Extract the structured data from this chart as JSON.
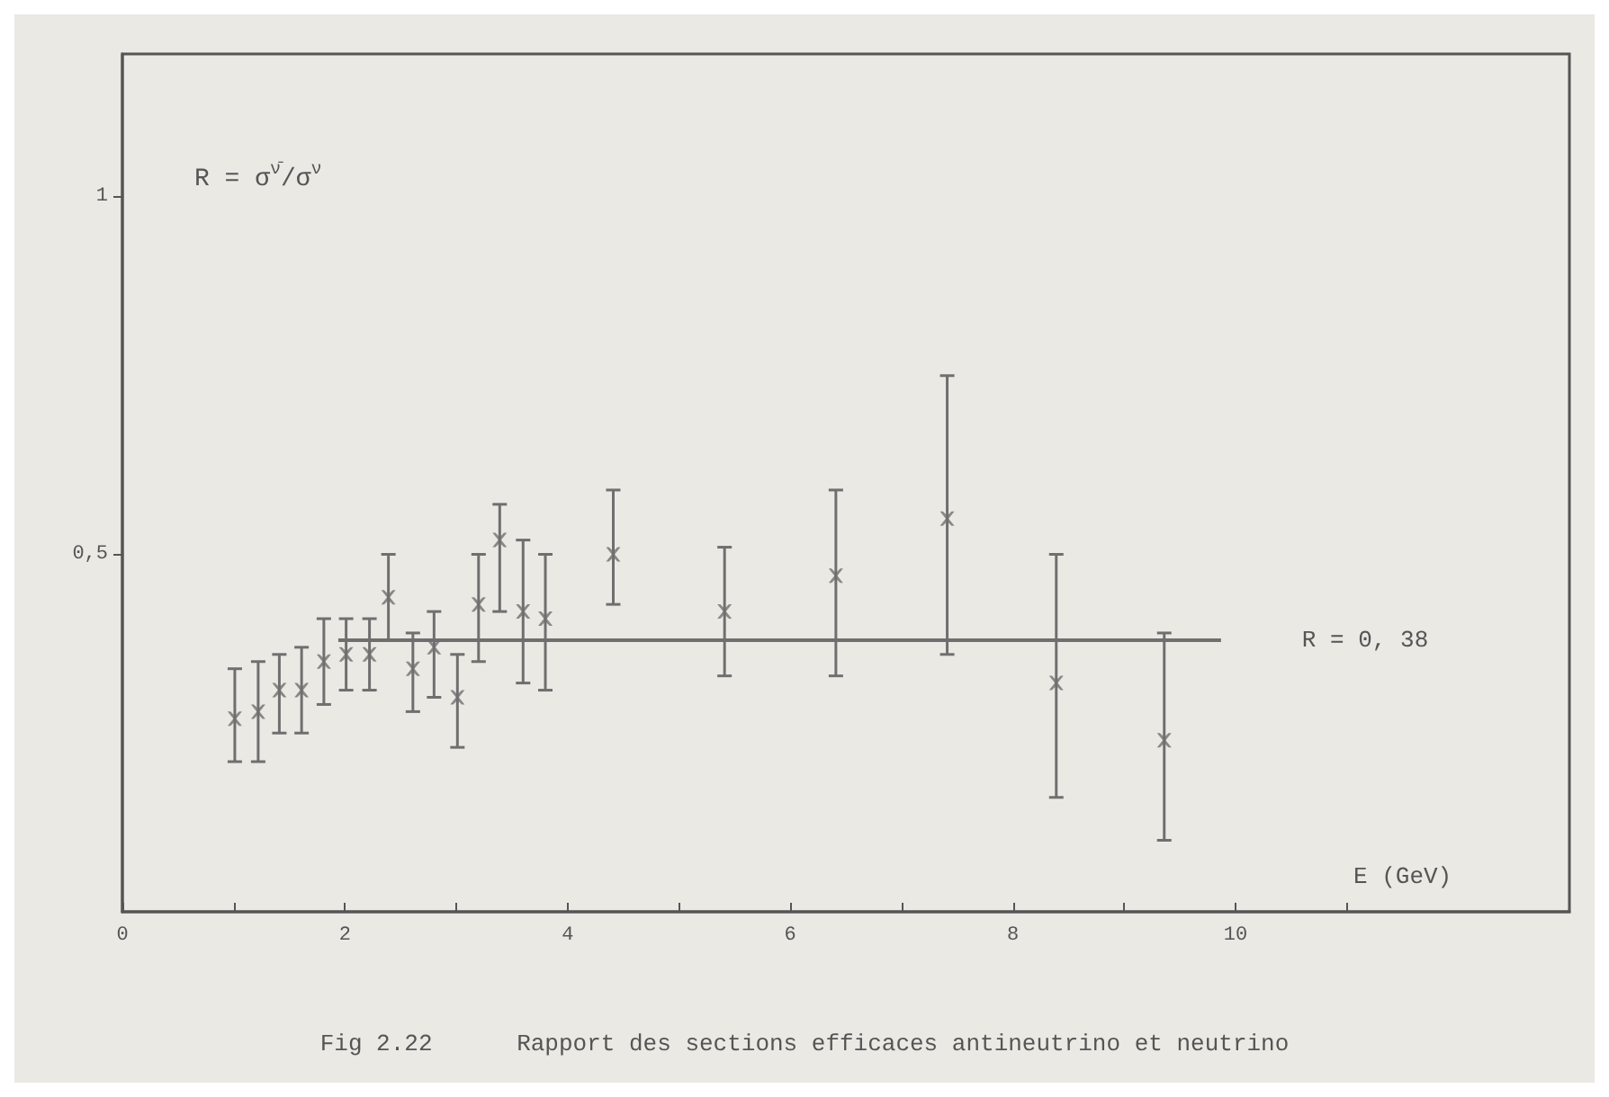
{
  "chart_data": {
    "type": "scatter",
    "title": "Fig 2.22      Rapport des sections efficaces antineutrino et neutrino",
    "xlabel": "E (GeV)",
    "annotations": [
      "R = σ$^{ν̄}$/σ$^{ν}$"
    ],
    "xlim": [
      0,
      13
    ],
    "xticks": [
      0,
      {
        "value": 1,
        "label": null
      },
      2,
      {
        "value": 3,
        "label": null
      },
      4,
      {
        "value": 5,
        "label": null
      },
      6,
      {
        "value": 7,
        "label": null
      },
      8,
      {
        "value": 9,
        "label": null
      },
      10,
      {
        "value": 11,
        "label": null
      }
    ],
    "ylim": [
      0,
      1.2
    ],
    "yticks": [
      {
        "value": 0.5,
        "label": "0,5"
      },
      1
    ],
    "grid": false,
    "series": [
      {
        "marker": "cross",
        "color": "#6f6f6f",
        "x": [
          1.01,
          1.22,
          1.41,
          1.61,
          1.81,
          2.01,
          2.22,
          2.39,
          2.61,
          2.8,
          3.01,
          3.2,
          3.39,
          3.6,
          3.8,
          4.41,
          5.41,
          6.41,
          7.41,
          8.39,
          9.36
        ],
        "values": [
          0.27,
          0.28,
          0.31,
          0.31,
          0.35,
          0.36,
          0.36,
          0.44,
          0.34,
          0.37,
          0.3,
          0.43,
          0.52,
          0.42,
          0.41,
          0.5,
          0.42,
          0.47,
          0.55,
          0.32,
          0.24
        ],
        "errors": [
          [
            0.21,
            0.34
          ],
          [
            0.21,
            0.35
          ],
          [
            0.25,
            0.36
          ],
          [
            0.25,
            0.37
          ],
          [
            0.29,
            0.41
          ],
          [
            0.31,
            0.41
          ],
          [
            0.31,
            0.41
          ],
          [
            0.38,
            0.5
          ],
          [
            0.28,
            0.39
          ],
          [
            0.3,
            0.42
          ],
          [
            0.23,
            0.36
          ],
          [
            0.35,
            0.5
          ],
          [
            0.42,
            0.57
          ],
          [
            0.32,
            0.52
          ],
          [
            0.31,
            0.5
          ],
          [
            0.43,
            0.59
          ],
          [
            0.33,
            0.51
          ],
          [
            0.33,
            0.59
          ],
          [
            0.36,
            0.75
          ],
          [
            0.16,
            0.5
          ],
          [
            0.1,
            0.39
          ]
        ]
      },
      {
        "type": "line",
        "name": "R = 0, 38",
        "color": "#6f6f6f",
        "x": [
          1.94,
          9.87
        ],
        "values": [
          0.38,
          0.38
        ]
      }
    ]
  }
}
